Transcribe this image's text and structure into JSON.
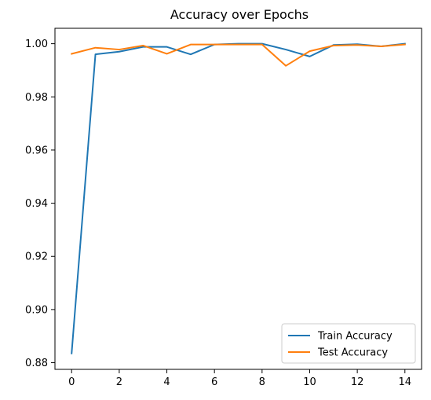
{
  "chart_data": {
    "type": "line",
    "title": "Accuracy over Epochs",
    "xlabel": "",
    "ylabel": "",
    "x": [
      0,
      1,
      2,
      3,
      4,
      5,
      6,
      7,
      8,
      9,
      10,
      11,
      12,
      13,
      14
    ],
    "xlim": [
      -0.7,
      14.7
    ],
    "ylim": [
      0.8775,
      1.0058
    ],
    "xticks": [
      0,
      2,
      4,
      6,
      8,
      10,
      12,
      14
    ],
    "yticks": [
      0.88,
      0.9,
      0.92,
      0.94,
      0.96,
      0.98,
      1.0
    ],
    "ytick_labels": [
      "0.88",
      "0.90",
      "0.92",
      "0.94",
      "0.96",
      "0.98",
      "1.00"
    ],
    "grid": false,
    "legend_position": "lower right",
    "series": [
      {
        "name": "Train Accuracy",
        "color": "#1f77b4",
        "values": [
          0.8835,
          0.996,
          0.997,
          0.9988,
          0.9988,
          0.996,
          0.9997,
          1.0,
          1.0,
          0.9978,
          0.9952,
          0.9995,
          0.9998,
          0.999,
          1.0
        ]
      },
      {
        "name": "Test Accuracy",
        "color": "#ff7f0e",
        "values": [
          0.9962,
          0.9985,
          0.9978,
          0.9993,
          0.9962,
          0.9997,
          0.9997,
          0.9997,
          0.9997,
          0.9917,
          0.9972,
          0.9993,
          0.9995,
          0.999,
          0.9997
        ]
      }
    ]
  }
}
